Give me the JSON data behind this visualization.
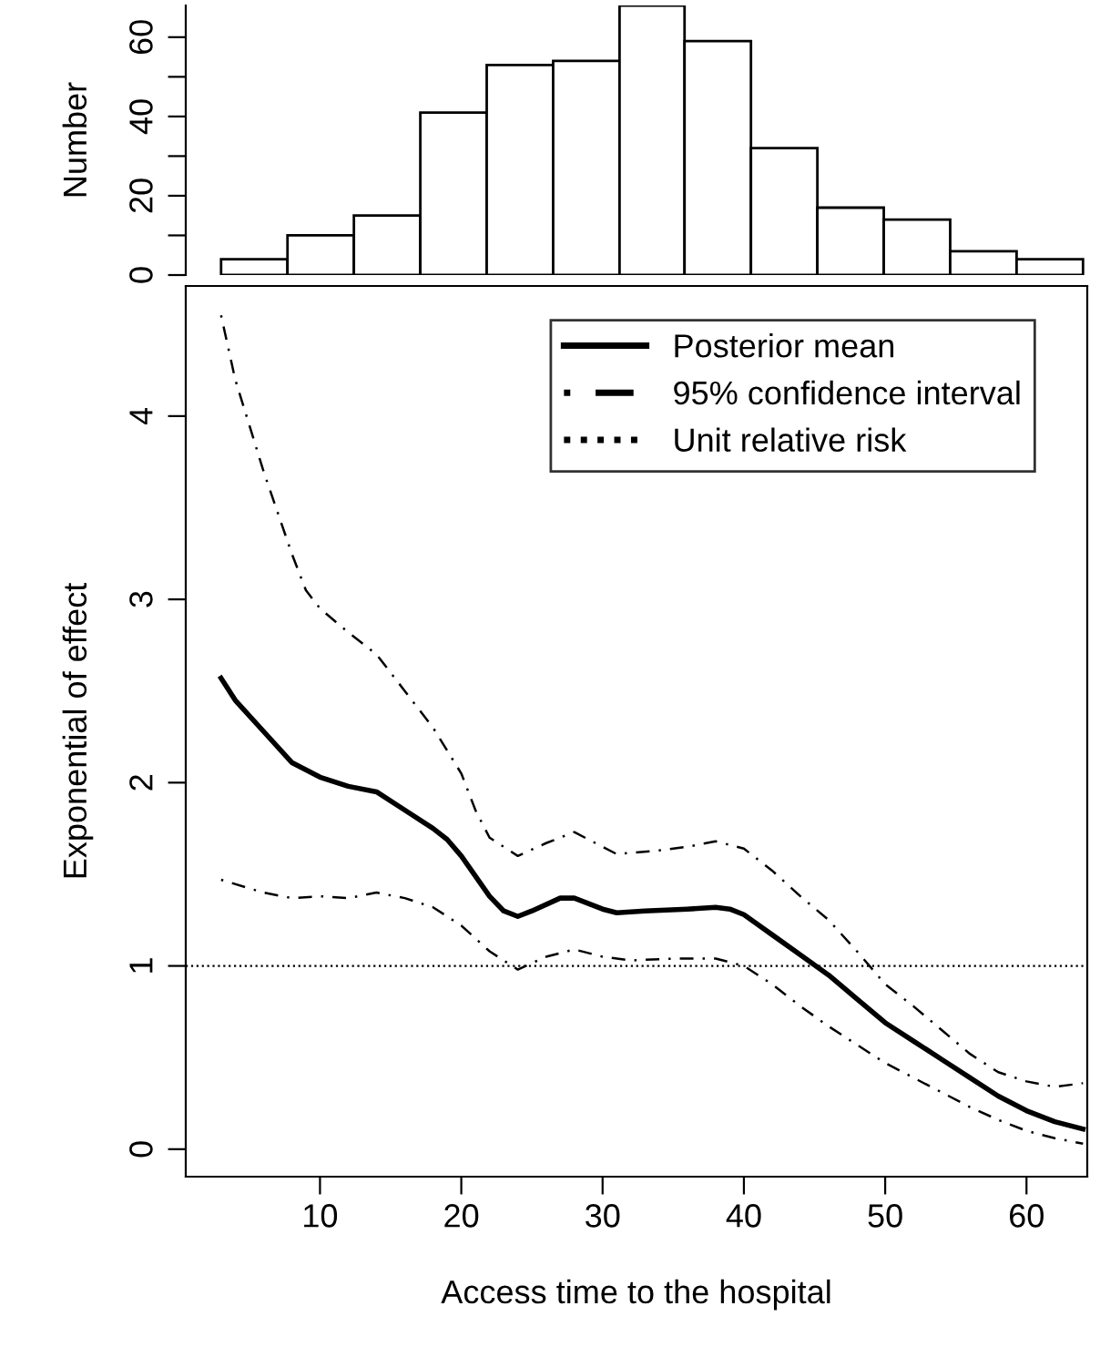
{
  "chart_data": [
    {
      "type": "histogram",
      "ylabel": "Number",
      "bins": [
        3,
        7.7,
        12.4,
        17.1,
        21.8,
        26.5,
        31.2,
        35.8,
        40.5,
        45.2,
        49.9,
        54.6,
        59.3,
        64.0
      ],
      "values": [
        4,
        10,
        15,
        41,
        53,
        54,
        68,
        59,
        32,
        17,
        14,
        6,
        4
      ],
      "color": "#ffffff",
      "xlim": [
        0.5,
        64.3
      ],
      "ylim": [
        0,
        68
      ],
      "yticks": [
        0,
        {
          "value": 10,
          "label": null
        },
        20,
        {
          "value": 30,
          "label": null
        },
        40,
        {
          "value": 50,
          "label": null
        },
        60
      ],
      "tick_labels": "y",
      "grid": false,
      "legend": false
    },
    {
      "type": "line",
      "xlabel": "Access time to the hospital",
      "ylabel": "Exponential of effect",
      "xlim": [
        0.5,
        64.3
      ],
      "ylim": [
        -0.15,
        4.71
      ],
      "xticks": [
        10,
        20,
        30,
        40,
        50,
        60
      ],
      "yticks": [
        0,
        1,
        2,
        3,
        4
      ],
      "grid": false,
      "legend": "top right",
      "marker": "none",
      "series": [
        {
          "name": "Posterior mean",
          "color": "#000000",
          "line_style": "solid",
          "x": [
            3,
            4,
            6,
            8,
            10,
            12,
            14,
            16,
            18,
            19,
            20,
            22,
            23,
            24,
            25,
            27,
            28,
            30,
            31,
            33,
            36,
            38,
            39,
            40,
            42,
            44,
            46,
            48,
            50,
            52,
            54,
            56,
            58,
            60,
            62,
            64
          ],
          "values": [
            2.57,
            2.45,
            2.28,
            2.11,
            2.03,
            1.98,
            1.95,
            1.85,
            1.75,
            1.69,
            1.6,
            1.38,
            1.3,
            1.27,
            1.3,
            1.37,
            1.37,
            1.31,
            1.29,
            1.3,
            1.31,
            1.32,
            1.31,
            1.28,
            1.17,
            1.06,
            0.95,
            0.82,
            0.69,
            0.59,
            0.49,
            0.39,
            0.29,
            0.21,
            0.15,
            0.11
          ]
        },
        {
          "name": "95% confidence interval",
          "color": "#000000",
          "line_style": "dashdot",
          "x": [
            3,
            4,
            6,
            8,
            9,
            10,
            12,
            14,
            16,
            18,
            20,
            21,
            22,
            24,
            26,
            28,
            30,
            31,
            34,
            36,
            38,
            40,
            42,
            44,
            46,
            48,
            50,
            52,
            54,
            56,
            58,
            60,
            62,
            64
          ],
          "values": [
            4.55,
            4.2,
            3.7,
            3.25,
            3.05,
            2.95,
            2.82,
            2.7,
            2.5,
            2.3,
            2.05,
            1.85,
            1.7,
            1.6,
            1.67,
            1.73,
            1.65,
            1.61,
            1.63,
            1.65,
            1.68,
            1.64,
            1.52,
            1.38,
            1.25,
            1.08,
            0.9,
            0.78,
            0.65,
            0.52,
            0.42,
            0.37,
            0.34,
            0.36
          ]
        },
        {
          "color": "#000000",
          "line_style": "dashdot",
          "x": [
            3,
            6,
            8,
            10,
            12,
            14,
            16,
            18,
            20,
            22,
            24,
            26,
            28,
            30,
            32,
            35,
            38,
            40,
            42,
            44,
            46,
            48,
            50,
            52,
            54,
            56,
            58,
            60,
            62,
            64
          ],
          "values": [
            1.47,
            1.4,
            1.37,
            1.38,
            1.37,
            1.4,
            1.37,
            1.32,
            1.22,
            1.08,
            0.98,
            1.05,
            1.09,
            1.05,
            1.03,
            1.04,
            1.04,
            1.0,
            0.9,
            0.78,
            0.67,
            0.57,
            0.47,
            0.39,
            0.31,
            0.23,
            0.16,
            0.1,
            0.06,
            0.03
          ]
        }
      ],
      "ref_lines": [
        {
          "axis": "y",
          "value": 1,
          "label": "Unit relative risk",
          "line_style": "dotted",
          "color": "#000000"
        }
      ]
    }
  ]
}
